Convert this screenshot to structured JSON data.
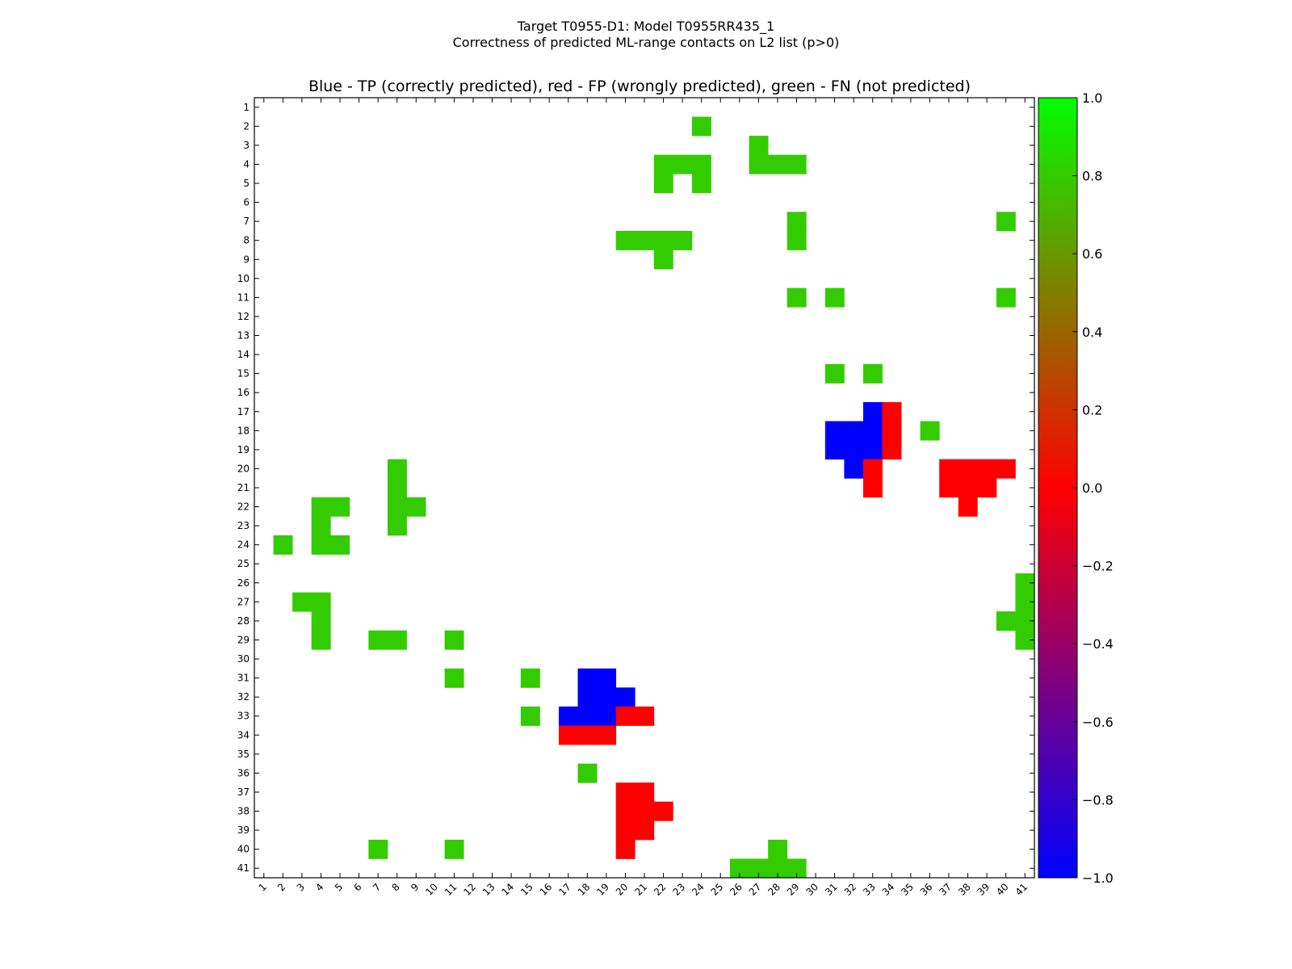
{
  "chart_data": {
    "type": "heatmap",
    "title_line1": "Target T0955-D1: Model T0955RR435_1",
    "title_line2": "Correctness of predicted ML-range contacts on L2 list (p>0)",
    "subtitle": "Blue - TP (correctly predicted), red - FP (wrongly predicted), green - FN (not predicted)",
    "n": 41,
    "x_categories": [
      "1",
      "2",
      "3",
      "4",
      "5",
      "6",
      "7",
      "8",
      "9",
      "10",
      "11",
      "12",
      "13",
      "14",
      "15",
      "16",
      "17",
      "18",
      "19",
      "20",
      "21",
      "22",
      "23",
      "24",
      "25",
      "26",
      "27",
      "28",
      "29",
      "30",
      "31",
      "32",
      "33",
      "34",
      "35",
      "36",
      "37",
      "38",
      "39",
      "40",
      "41"
    ],
    "y_categories": [
      "1",
      "2",
      "3",
      "4",
      "5",
      "6",
      "7",
      "8",
      "9",
      "10",
      "11",
      "12",
      "13",
      "14",
      "15",
      "16",
      "17",
      "18",
      "19",
      "20",
      "21",
      "22",
      "23",
      "24",
      "25",
      "26",
      "27",
      "28",
      "29",
      "30",
      "31",
      "32",
      "33",
      "34",
      "35",
      "36",
      "37",
      "38",
      "39",
      "40",
      "41"
    ],
    "cell_value_meaning": {
      "1.0": "FN (not predicted)",
      "0.0": "FP (wrongly predicted)",
      "-1.0": "TP (correctly predicted)"
    },
    "colorbar": {
      "range": [
        -1.0,
        1.0
      ],
      "ticks": [
        "1.0",
        "0.8",
        "0.6",
        "0.4",
        "0.2",
        "0.0",
        "−0.2",
        "−0.4",
        "−0.6",
        "−0.8",
        "−1.0"
      ],
      "tick_values": [
        1.0,
        0.8,
        0.6,
        0.4,
        0.2,
        0.0,
        -0.2,
        -0.4,
        -0.6,
        -0.8,
        -1.0
      ],
      "colors": {
        "-1.0": "#0000ff",
        "0.0": "#ff0000",
        "1.0": "#00ff00"
      }
    },
    "displayed_colors": {
      "FN": "#33cc00",
      "FP": "#ff0000",
      "TP": "#0000ff"
    },
    "cells": [
      {
        "row": 2,
        "col": 24,
        "value": 1.0
      },
      {
        "row": 3,
        "col": 27,
        "value": 1.0
      },
      {
        "row": 4,
        "col": 22,
        "value": 1.0
      },
      {
        "row": 4,
        "col": 23,
        "value": 1.0
      },
      {
        "row": 4,
        "col": 24,
        "value": 1.0
      },
      {
        "row": 4,
        "col": 27,
        "value": 1.0
      },
      {
        "row": 4,
        "col": 28,
        "value": 1.0
      },
      {
        "row": 4,
        "col": 29,
        "value": 1.0
      },
      {
        "row": 5,
        "col": 22,
        "value": 1.0
      },
      {
        "row": 5,
        "col": 24,
        "value": 1.0
      },
      {
        "row": 7,
        "col": 29,
        "value": 1.0
      },
      {
        "row": 7,
        "col": 40,
        "value": 1.0
      },
      {
        "row": 8,
        "col": 20,
        "value": 1.0
      },
      {
        "row": 8,
        "col": 21,
        "value": 1.0
      },
      {
        "row": 8,
        "col": 22,
        "value": 1.0
      },
      {
        "row": 8,
        "col": 23,
        "value": 1.0
      },
      {
        "row": 8,
        "col": 29,
        "value": 1.0
      },
      {
        "row": 9,
        "col": 22,
        "value": 1.0
      },
      {
        "row": 11,
        "col": 29,
        "value": 1.0
      },
      {
        "row": 11,
        "col": 31,
        "value": 1.0
      },
      {
        "row": 11,
        "col": 40,
        "value": 1.0
      },
      {
        "row": 15,
        "col": 31,
        "value": 1.0
      },
      {
        "row": 15,
        "col": 33,
        "value": 1.0
      },
      {
        "row": 17,
        "col": 33,
        "value": -1.0
      },
      {
        "row": 17,
        "col": 34,
        "value": 0.0
      },
      {
        "row": 18,
        "col": 31,
        "value": -1.0
      },
      {
        "row": 18,
        "col": 32,
        "value": -1.0
      },
      {
        "row": 18,
        "col": 33,
        "value": -1.0
      },
      {
        "row": 18,
        "col": 34,
        "value": 0.0
      },
      {
        "row": 18,
        "col": 36,
        "value": 1.0
      },
      {
        "row": 19,
        "col": 31,
        "value": -1.0
      },
      {
        "row": 19,
        "col": 32,
        "value": -1.0
      },
      {
        "row": 19,
        "col": 33,
        "value": -1.0
      },
      {
        "row": 19,
        "col": 34,
        "value": 0.0
      },
      {
        "row": 20,
        "col": 8,
        "value": 1.0
      },
      {
        "row": 20,
        "col": 32,
        "value": -1.0
      },
      {
        "row": 20,
        "col": 33,
        "value": 0.0
      },
      {
        "row": 20,
        "col": 37,
        "value": 0.0
      },
      {
        "row": 20,
        "col": 38,
        "value": 0.0
      },
      {
        "row": 20,
        "col": 39,
        "value": 0.0
      },
      {
        "row": 20,
        "col": 40,
        "value": 0.0
      },
      {
        "row": 21,
        "col": 8,
        "value": 1.0
      },
      {
        "row": 21,
        "col": 33,
        "value": 0.0
      },
      {
        "row": 21,
        "col": 37,
        "value": 0.0
      },
      {
        "row": 21,
        "col": 38,
        "value": 0.0
      },
      {
        "row": 21,
        "col": 39,
        "value": 0.0
      },
      {
        "row": 22,
        "col": 4,
        "value": 1.0
      },
      {
        "row": 22,
        "col": 5,
        "value": 1.0
      },
      {
        "row": 22,
        "col": 8,
        "value": 1.0
      },
      {
        "row": 22,
        "col": 9,
        "value": 1.0
      },
      {
        "row": 22,
        "col": 38,
        "value": 0.0
      },
      {
        "row": 23,
        "col": 4,
        "value": 1.0
      },
      {
        "row": 23,
        "col": 8,
        "value": 1.0
      },
      {
        "row": 24,
        "col": 2,
        "value": 1.0
      },
      {
        "row": 24,
        "col": 4,
        "value": 1.0
      },
      {
        "row": 24,
        "col": 5,
        "value": 1.0
      },
      {
        "row": 26,
        "col": 41,
        "value": 1.0
      },
      {
        "row": 27,
        "col": 3,
        "value": 1.0
      },
      {
        "row": 27,
        "col": 4,
        "value": 1.0
      },
      {
        "row": 27,
        "col": 41,
        "value": 1.0
      },
      {
        "row": 28,
        "col": 4,
        "value": 1.0
      },
      {
        "row": 28,
        "col": 40,
        "value": 1.0
      },
      {
        "row": 28,
        "col": 41,
        "value": 1.0
      },
      {
        "row": 29,
        "col": 4,
        "value": 1.0
      },
      {
        "row": 29,
        "col": 7,
        "value": 1.0
      },
      {
        "row": 29,
        "col": 8,
        "value": 1.0
      },
      {
        "row": 29,
        "col": 11,
        "value": 1.0
      },
      {
        "row": 29,
        "col": 41,
        "value": 1.0
      },
      {
        "row": 31,
        "col": 11,
        "value": 1.0
      },
      {
        "row": 31,
        "col": 15,
        "value": 1.0
      },
      {
        "row": 31,
        "col": 18,
        "value": -1.0
      },
      {
        "row": 31,
        "col": 19,
        "value": -1.0
      },
      {
        "row": 32,
        "col": 18,
        "value": -1.0
      },
      {
        "row": 32,
        "col": 19,
        "value": -1.0
      },
      {
        "row": 32,
        "col": 20,
        "value": -1.0
      },
      {
        "row": 33,
        "col": 15,
        "value": 1.0
      },
      {
        "row": 33,
        "col": 17,
        "value": -1.0
      },
      {
        "row": 33,
        "col": 18,
        "value": -1.0
      },
      {
        "row": 33,
        "col": 19,
        "value": -1.0
      },
      {
        "row": 33,
        "col": 20,
        "value": 0.0
      },
      {
        "row": 33,
        "col": 21,
        "value": 0.0
      },
      {
        "row": 34,
        "col": 17,
        "value": 0.0
      },
      {
        "row": 34,
        "col": 18,
        "value": 0.0
      },
      {
        "row": 34,
        "col": 19,
        "value": 0.0
      },
      {
        "row": 36,
        "col": 18,
        "value": 1.0
      },
      {
        "row": 37,
        "col": 20,
        "value": 0.0
      },
      {
        "row": 37,
        "col": 21,
        "value": 0.0
      },
      {
        "row": 38,
        "col": 20,
        "value": 0.0
      },
      {
        "row": 38,
        "col": 21,
        "value": 0.0
      },
      {
        "row": 38,
        "col": 22,
        "value": 0.0
      },
      {
        "row": 39,
        "col": 20,
        "value": 0.0
      },
      {
        "row": 39,
        "col": 21,
        "value": 0.0
      },
      {
        "row": 40,
        "col": 7,
        "value": 1.0
      },
      {
        "row": 40,
        "col": 11,
        "value": 1.0
      },
      {
        "row": 40,
        "col": 20,
        "value": 0.0
      },
      {
        "row": 40,
        "col": 28,
        "value": 1.0
      },
      {
        "row": 41,
        "col": 26,
        "value": 1.0
      },
      {
        "row": 41,
        "col": 27,
        "value": 1.0
      },
      {
        "row": 41,
        "col": 28,
        "value": 1.0
      },
      {
        "row": 41,
        "col": 29,
        "value": 1.0
      }
    ]
  }
}
